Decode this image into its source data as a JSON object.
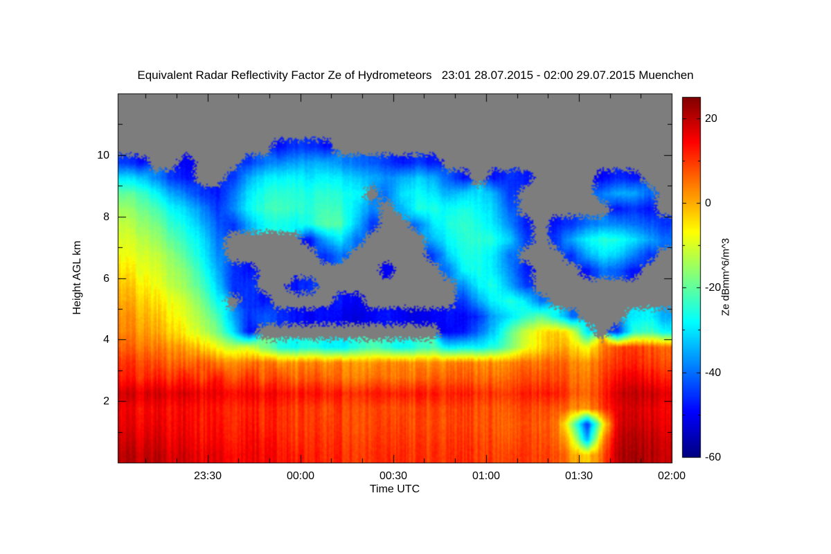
{
  "chart_data": {
    "type": "heatmap",
    "title": "Equivalent Radar Reflectivity Factor Ze of Hydrometeors   23:01 28.07.2015 - 02:00 29.07.2015 Muenchen",
    "station": "Muenchen",
    "time_span_label": "23:01 28.07.2015 - 02:00 29.07.2015",
    "colormap": "jet",
    "no_echo_color": "#7d7d7d",
    "x_axis": {
      "label": "Time UTC",
      "start": "23:01",
      "end": "02:00",
      "total_minutes": 179,
      "ticks": [
        {
          "label": "23:30",
          "min": 29
        },
        {
          "label": "00:00",
          "min": 59
        },
        {
          "label": "00:30",
          "min": 89
        },
        {
          "label": "01:00",
          "min": 119
        },
        {
          "label": "01:30",
          "min": 149
        },
        {
          "label": "02:00",
          "min": 179
        }
      ],
      "minor_tick_minutes": [
        9,
        19,
        39,
        49,
        69,
        79,
        99,
        109,
        129,
        139,
        159,
        169
      ]
    },
    "y_axis": {
      "label": "Height AGL km",
      "range_km": [
        0,
        12
      ],
      "ticks_km": [
        2,
        4,
        6,
        8,
        10
      ],
      "minor_ticks_km": [
        1,
        3,
        5,
        7,
        9,
        11
      ]
    },
    "colorbar": {
      "label": "Ze dBmm^6/m^3",
      "vmin": -60,
      "vmax": 25,
      "ticks": [
        {
          "label": "20",
          "value": 20
        },
        {
          "label": "0",
          "value": 0
        },
        {
          "label": "-20",
          "value": -20
        },
        {
          "label": "-40",
          "value": -40
        },
        {
          "label": "-60",
          "value": -60
        }
      ],
      "minor_tick_values": [
        10,
        -10,
        -30,
        -50
      ]
    },
    "grid": {
      "description": "Coarse Ze grid in dBZ; rows top (12 km) to bottom (0 km), 0.5 km steps; 36 time columns from 23:01 to 02:00 UTC; null = no echo (gray).",
      "n_time_cols": 36,
      "n_height_rows": 24,
      "time_start": "23:01",
      "time_end": "02:00",
      "height_top_km": 12,
      "height_bottom_km": 0,
      "no_echo_value": null,
      "values_dbz": [
        [
          null,
          null,
          null,
          null,
          null,
          null,
          null,
          null,
          null,
          null,
          null,
          null,
          null,
          null,
          null,
          null,
          null,
          null,
          null,
          null,
          null,
          null,
          null,
          null,
          null,
          null,
          null,
          null,
          null,
          null,
          null,
          null,
          null,
          null,
          null,
          null
        ],
        [
          null,
          null,
          null,
          null,
          null,
          null,
          null,
          null,
          null,
          null,
          null,
          null,
          null,
          null,
          null,
          null,
          null,
          null,
          null,
          null,
          null,
          null,
          null,
          null,
          null,
          null,
          null,
          null,
          null,
          null,
          null,
          null,
          null,
          null,
          null,
          null
        ],
        [
          null,
          null,
          null,
          null,
          null,
          null,
          null,
          null,
          null,
          null,
          null,
          null,
          null,
          null,
          null,
          null,
          null,
          null,
          null,
          null,
          null,
          null,
          null,
          null,
          null,
          null,
          null,
          null,
          null,
          null,
          null,
          null,
          null,
          null,
          null,
          null
        ],
        [
          null,
          null,
          null,
          null,
          null,
          null,
          null,
          null,
          null,
          null,
          -48,
          -45,
          -45,
          -48,
          null,
          null,
          null,
          null,
          null,
          null,
          null,
          null,
          null,
          null,
          null,
          null,
          null,
          null,
          null,
          null,
          null,
          null,
          null,
          null,
          null,
          null
        ],
        [
          -45,
          -48,
          null,
          null,
          -50,
          null,
          null,
          null,
          -45,
          -40,
          -38,
          -36,
          -35,
          -35,
          -38,
          -40,
          -42,
          -45,
          -48,
          -45,
          -48,
          null,
          null,
          null,
          null,
          null,
          null,
          null,
          null,
          null,
          null,
          null,
          null,
          null,
          null,
          null
        ],
        [
          -30,
          -32,
          -38,
          -45,
          -48,
          null,
          null,
          -45,
          -35,
          -30,
          -28,
          -28,
          -30,
          -28,
          -30,
          -32,
          -35,
          -38,
          -35,
          -32,
          -35,
          -42,
          -48,
          null,
          -48,
          -45,
          -48,
          null,
          null,
          null,
          null,
          -50,
          -46,
          -48,
          null,
          null
        ],
        [
          -20,
          -22,
          -28,
          -35,
          -40,
          -45,
          -48,
          -40,
          -30,
          -26,
          -24,
          -25,
          -26,
          -24,
          -26,
          -28,
          null,
          -40,
          -30,
          -28,
          -30,
          -35,
          -32,
          -30,
          -35,
          -45,
          null,
          null,
          null,
          null,
          null,
          -40,
          -35,
          -35,
          -40,
          null
        ],
        [
          -15,
          -18,
          -22,
          -28,
          -32,
          -38,
          -45,
          -38,
          -28,
          -24,
          -22,
          -24,
          -25,
          -22,
          -24,
          -30,
          -38,
          null,
          -35,
          -26,
          -26,
          -28,
          -26,
          -28,
          -32,
          -42,
          null,
          null,
          null,
          null,
          null,
          null,
          -48,
          -45,
          -48,
          null
        ],
        [
          -12,
          -15,
          -18,
          -24,
          -28,
          -34,
          -42,
          -45,
          -35,
          -28,
          -26,
          -28,
          -26,
          -20,
          -22,
          -32,
          -45,
          null,
          null,
          -40,
          -30,
          -26,
          -24,
          -26,
          -30,
          -38,
          -48,
          null,
          -48,
          -45,
          -40,
          -38,
          -38,
          -40,
          -42,
          -45
        ],
        [
          -10,
          -12,
          -15,
          -20,
          -25,
          -30,
          -40,
          null,
          null,
          null,
          null,
          null,
          -48,
          -35,
          -30,
          -40,
          null,
          null,
          null,
          null,
          -35,
          -28,
          -25,
          -24,
          -26,
          -32,
          -45,
          null,
          -45,
          -35,
          -28,
          -25,
          -26,
          -30,
          -35,
          -40
        ],
        [
          -8,
          -10,
          -12,
          -16,
          -22,
          -28,
          -38,
          null,
          null,
          null,
          null,
          null,
          null,
          -45,
          -40,
          null,
          null,
          null,
          null,
          null,
          -45,
          -32,
          -26,
          -26,
          -30,
          -40,
          null,
          null,
          null,
          -45,
          -35,
          -30,
          -32,
          -38,
          -45,
          null
        ],
        [
          -5,
          -8,
          -10,
          -14,
          -18,
          -25,
          -35,
          -45,
          -48,
          null,
          null,
          null,
          null,
          null,
          null,
          null,
          null,
          -50,
          null,
          null,
          null,
          -40,
          -28,
          -26,
          -30,
          -38,
          -48,
          null,
          null,
          null,
          -48,
          -40,
          -42,
          -48,
          null,
          null
        ],
        [
          -2,
          -5,
          -8,
          -12,
          -16,
          -22,
          -32,
          -45,
          -45,
          null,
          null,
          -48,
          -45,
          null,
          null,
          null,
          null,
          null,
          null,
          null,
          null,
          null,
          -38,
          -28,
          -26,
          -35,
          -45,
          null,
          null,
          null,
          null,
          null,
          null,
          null,
          null,
          null
        ],
        [
          0,
          -2,
          -5,
          -8,
          -12,
          -18,
          -28,
          null,
          -45,
          -48,
          null,
          null,
          null,
          null,
          -48,
          -50,
          null,
          null,
          null,
          null,
          null,
          null,
          -45,
          -35,
          -28,
          -25,
          -30,
          -40,
          null,
          null,
          null,
          null,
          null,
          null,
          null,
          null
        ],
        [
          2,
          0,
          -2,
          -6,
          -10,
          -15,
          -22,
          -35,
          -45,
          -42,
          -45,
          -48,
          -50,
          -48,
          -50,
          -52,
          -50,
          -48,
          -50,
          -52,
          -50,
          -48,
          -50,
          -45,
          -35,
          -30,
          -25,
          -20,
          -28,
          -40,
          null,
          null,
          null,
          -30,
          -28,
          -35
        ],
        [
          3,
          2,
          0,
          -3,
          -8,
          -12,
          -18,
          -30,
          -48,
          null,
          null,
          null,
          null,
          null,
          null,
          null,
          null,
          null,
          null,
          null,
          null,
          -50,
          -48,
          -40,
          -32,
          -20,
          -12,
          -5,
          -3,
          -8,
          -30,
          null,
          -45,
          -25,
          -22,
          -28
        ],
        [
          6,
          5,
          4,
          2,
          0,
          -3,
          -8,
          -12,
          -10,
          -18,
          -25,
          -28,
          -25,
          -28,
          -30,
          -25,
          -22,
          -25,
          -28,
          -25,
          -22,
          -30,
          -28,
          -28,
          -25,
          -18,
          -10,
          -4,
          0,
          -2,
          -8,
          2,
          8,
          10,
          8,
          6
        ],
        [
          10,
          9,
          8,
          6,
          5,
          7,
          4,
          3,
          5,
          4,
          3,
          2,
          4,
          2,
          3,
          2,
          1,
          2,
          3,
          2,
          2,
          3,
          4,
          3,
          2,
          3,
          4,
          5,
          6,
          4,
          2,
          6,
          10,
          12,
          10,
          8
        ],
        [
          12,
          11,
          12,
          10,
          12,
          8,
          13,
          7,
          12,
          6,
          10,
          5,
          8,
          6,
          5,
          4,
          5,
          4,
          5,
          5,
          6,
          6,
          7,
          6,
          5,
          6,
          7,
          8,
          8,
          6,
          4,
          8,
          14,
          16,
          14,
          12
        ],
        [
          18,
          17,
          18,
          16,
          17,
          15,
          16,
          14,
          16,
          13,
          15,
          12,
          14,
          12,
          12,
          11,
          12,
          11,
          12,
          12,
          12,
          11,
          12,
          11,
          10,
          10,
          11,
          12,
          12,
          8,
          6,
          10,
          18,
          20,
          19,
          17
        ],
        [
          15,
          14,
          15,
          13,
          14,
          12,
          13,
          11,
          13,
          10,
          12,
          9,
          10,
          8,
          9,
          8,
          8,
          7,
          8,
          8,
          8,
          8,
          9,
          8,
          7,
          7,
          8,
          8,
          7,
          4,
          2,
          8,
          16,
          18,
          17,
          15
        ],
        [
          16,
          15,
          16,
          14,
          15,
          12,
          14,
          11,
          14,
          10,
          12,
          9,
          10,
          9,
          9,
          8,
          8,
          8,
          9,
          8,
          8,
          8,
          9,
          8,
          7,
          6,
          7,
          7,
          5,
          -15,
          -45,
          -10,
          17,
          19,
          18,
          16
        ],
        [
          18,
          17,
          18,
          15,
          16,
          13,
          15,
          12,
          15,
          12,
          13,
          10,
          11,
          10,
          10,
          9,
          9,
          9,
          10,
          9,
          9,
          9,
          10,
          9,
          8,
          7,
          8,
          8,
          6,
          -5,
          -35,
          0,
          19,
          21,
          20,
          18
        ],
        [
          20,
          19,
          20,
          17,
          18,
          15,
          17,
          14,
          16,
          14,
          14,
          12,
          12,
          11,
          11,
          10,
          10,
          10,
          11,
          10,
          10,
          10,
          11,
          10,
          9,
          9,
          9,
          9,
          8,
          2,
          -3,
          5,
          20,
          22,
          21,
          19
        ]
      ]
    }
  }
}
